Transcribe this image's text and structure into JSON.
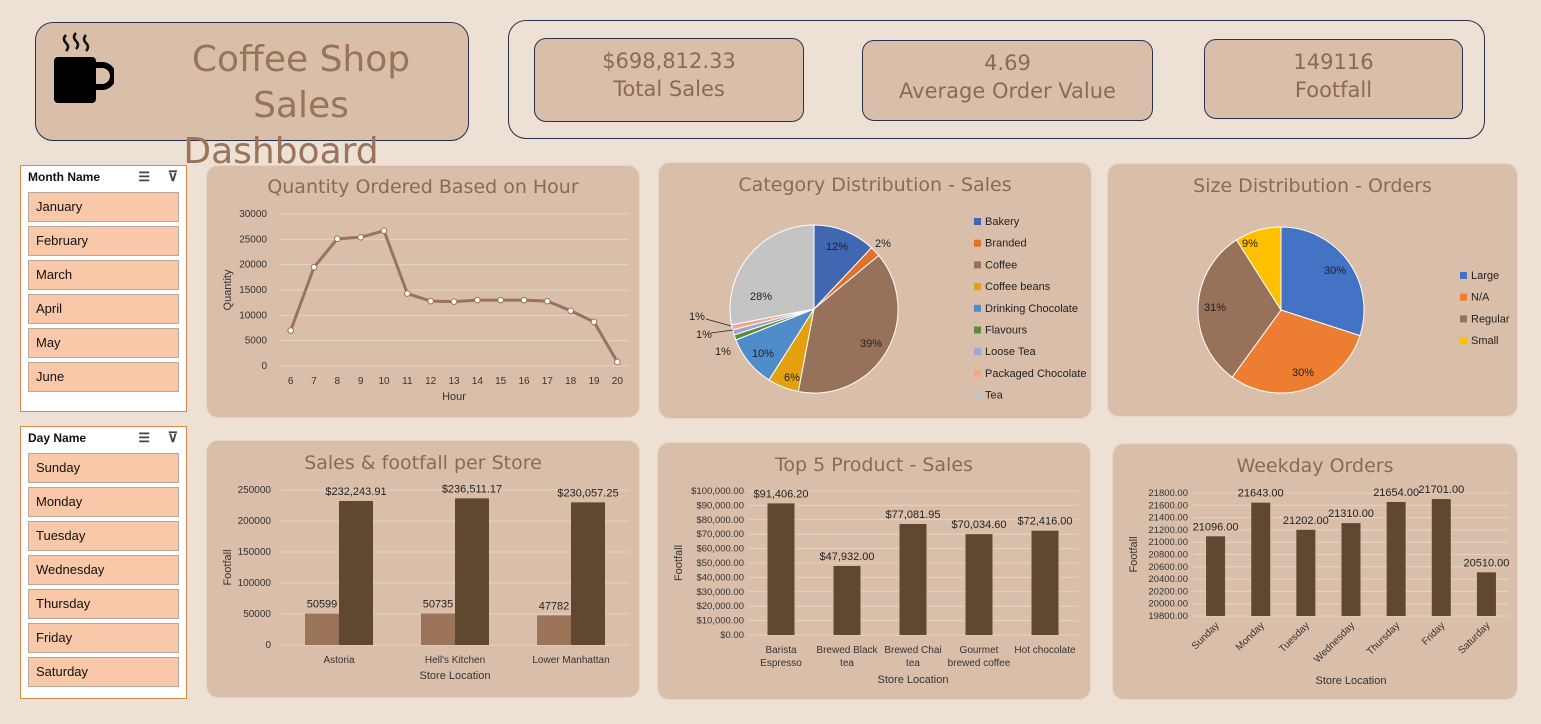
{
  "header": {
    "title_line1": "Coffee Shop Sales",
    "title_line2": "Dashboard",
    "icon": "coffee-cup-icon"
  },
  "kpis": [
    {
      "value": "$698,812.33",
      "label": "Total Sales"
    },
    {
      "value": "4.69",
      "label": "Average Order Value"
    },
    {
      "value": "149116",
      "label": "Footfall"
    }
  ],
  "month_slicer": {
    "title": "Month Name",
    "items": [
      "January",
      "February",
      "March",
      "April",
      "May",
      "June"
    ]
  },
  "day_slicer": {
    "title": "Day Name",
    "items": [
      "Sunday",
      "Monday",
      "Tuesday",
      "Wednesday",
      "Thursday",
      "Friday",
      "Saturday"
    ]
  },
  "colors": {
    "brown_line": "#9a7358",
    "dark_bar": "#604830",
    "light_bar": "#9a7358",
    "panel": "#d9bfaa"
  },
  "chart_data": [
    {
      "type": "line",
      "title": "Quantity Ordered Based on Hour",
      "xlabel": "Hour",
      "ylabel": "Quantity",
      "x": [
        6,
        7,
        8,
        9,
        10,
        11,
        12,
        13,
        14,
        15,
        16,
        17,
        18,
        19,
        20
      ],
      "values": [
        7000,
        19500,
        25100,
        25400,
        26700,
        14300,
        12800,
        12700,
        13000,
        13000,
        13000,
        12800,
        10900,
        8700,
        800
      ],
      "ylim": [
        0,
        30000
      ],
      "yticks": [
        "0",
        "5000",
        "10000",
        "15000",
        "20000",
        "25000",
        "30000"
      ]
    },
    {
      "type": "pie",
      "title": "Category Distribution - Sales",
      "labels": [
        "Bakery",
        "Branded",
        "Coffee",
        "Coffee beans",
        "Drinking Chocolate",
        "Flavours",
        "Loose Tea",
        "Packaged Chocolate",
        "Tea"
      ],
      "values": [
        12,
        2,
        39,
        6,
        10,
        1,
        1,
        1,
        28
      ],
      "pct_labels": [
        "12%",
        "2%",
        "39%",
        "6%",
        "10%",
        "1%",
        "1%",
        "1%",
        "28%"
      ],
      "colors": [
        "#4267b2",
        "#e0712a",
        "#977159",
        "#e3a10f",
        "#4f8cc9",
        "#5c8a3c",
        "#9da5d6",
        "#f2a68a",
        "#c4c4c4"
      ],
      "legend": "right"
    },
    {
      "type": "pie",
      "title": "Size Distribution - Orders",
      "labels": [
        "Large",
        "N/A",
        "Regular",
        "Small"
      ],
      "values": [
        30,
        30,
        31,
        9
      ],
      "pct_labels": [
        "30%",
        "30%",
        "31%",
        "9%"
      ],
      "colors": [
        "#4472c4",
        "#ed7d31",
        "#977159",
        "#ffc000"
      ],
      "legend": "right"
    },
    {
      "type": "bar",
      "title": "Sales & footfall per Store",
      "xlabel": "Store Location",
      "ylabel": "Footfall",
      "categories": [
        "Astoria",
        "Hell's Kitchen",
        "Lower Manhattan"
      ],
      "series": [
        {
          "values": [
            50599,
            50735,
            47782
          ],
          "labels": [
            "50599",
            "50735",
            "47782"
          ]
        },
        {
          "values": [
            232243.91,
            236511.17,
            230057.25
          ],
          "labels": [
            "$232,243.91",
            "$236,511.17",
            "$230,057.25"
          ]
        }
      ],
      "ylim": [
        0,
        250000
      ],
      "yticks": [
        "0",
        "50000",
        "100000",
        "150000",
        "200000",
        "250000"
      ]
    },
    {
      "type": "bar",
      "title": "Top 5 Product - Sales",
      "xlabel": "Store Location",
      "ylabel": "Footfall",
      "categories": [
        [
          "Barista",
          "Espresso"
        ],
        [
          "Brewed Black",
          "tea"
        ],
        [
          "Brewed Chai",
          "tea"
        ],
        [
          "Gourmet",
          "brewed coffee"
        ],
        [
          "Hot chocolate"
        ]
      ],
      "values": [
        91406.2,
        47932.0,
        77081.95,
        70034.6,
        72416.0
      ],
      "labels": [
        "$91,406.20",
        "$47,932.00",
        "$77,081.95",
        "$70,034.60",
        "$72,416.00"
      ],
      "ylim": [
        0,
        100000
      ],
      "yticks": [
        "$0.00",
        "$10,000.00",
        "$20,000.00",
        "$30,000.00",
        "$40,000.00",
        "$50,000.00",
        "$60,000.00",
        "$70,000.00",
        "$80,000.00",
        "$90,000.00",
        "$100,000.00"
      ]
    },
    {
      "type": "bar",
      "title": "Weekday Orders",
      "xlabel": "Store Location",
      "ylabel": "Footfall",
      "categories": [
        "Sunday",
        "Monday",
        "Tuesday",
        "Wednesday",
        "Thursday",
        "Friday",
        "Saturday"
      ],
      "values": [
        21096,
        21643,
        21202,
        21310,
        21654,
        21701,
        20510
      ],
      "labels": [
        "21096.00",
        "21643.00",
        "21202.00",
        "21310.00",
        "21654.00",
        "21701.00",
        "20510.00"
      ],
      "ylim": [
        19800,
        21800
      ],
      "yticks": [
        "19800.00",
        "20000.00",
        "20200.00",
        "20400.00",
        "20600.00",
        "20800.00",
        "21000.00",
        "21200.00",
        "21400.00",
        "21600.00",
        "21800.00"
      ]
    }
  ]
}
